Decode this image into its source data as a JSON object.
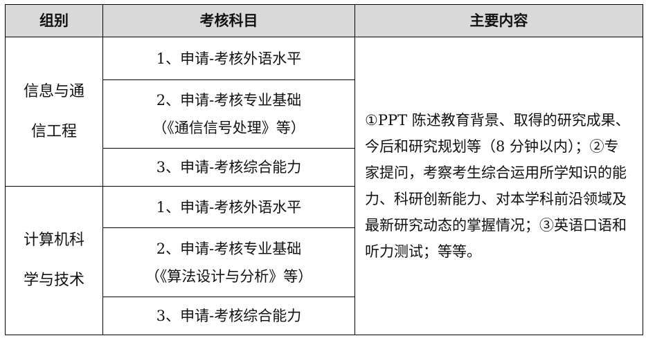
{
  "headers": [
    "组别",
    "考核科目",
    "主要内容"
  ],
  "groups": [
    {
      "name_lines": [
        "信息与通",
        "信工程"
      ],
      "subjects": [
        {
          "line1": "1、申请-考核外语水平",
          "line2": ""
        },
        {
          "line1": "2、申请-考核专业基础",
          "line2": "（《通信信号处理》等）"
        },
        {
          "line1": "3、申请-考核综合能力",
          "line2": ""
        }
      ]
    },
    {
      "name_lines": [
        "计算机科",
        "学与技术"
      ],
      "subjects": [
        {
          "line1": "1、申请-考核外语水平",
          "line2": ""
        },
        {
          "line1": "2、申请-考核专业基础",
          "line2": "（《算法设计与分析》等）"
        },
        {
          "line1": "3、申请-考核综合能力",
          "line2": ""
        }
      ]
    }
  ],
  "main_content": "①PPT 陈述教育背景、取得的研究成果、今后和研究规划等（8 分钟以内）；②专家提问，考察考生综合运用所学知识的能力、科研创新能力、对本学科前沿领域及最新研究动态的掌握情况；③英语口语和听力测试；等等。"
}
